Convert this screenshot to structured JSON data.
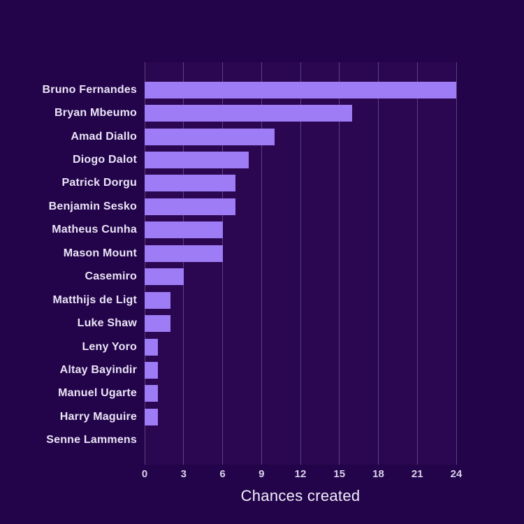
{
  "colors": {
    "figure_bg": "#23044a",
    "plot_bg": "#2a0750",
    "bar": "#9e7cf6",
    "gridline": "rgba(214,204,236,0.30)",
    "player_label_text": "#eae4f6",
    "tick_text": "#d9d1ea",
    "axis_label_text": "#f2eefb"
  },
  "chart_data": {
    "type": "bar",
    "orientation": "horizontal",
    "title": "",
    "xlabel": "Chances created",
    "ylabel": "",
    "categories": [
      "Bruno Fernandes",
      "Bryan Mbeumo",
      "Amad Diallo",
      "Diogo Dalot",
      "Patrick Dorgu",
      "Benjamin Sesko",
      "Matheus Cunha",
      "Mason Mount",
      "Casemiro",
      "Matthijs de Ligt",
      "Luke Shaw",
      "Leny Yoro",
      "Altay Bayindir",
      "Manuel Ugarte",
      "Harry Maguire",
      "Senne Lammens"
    ],
    "values": [
      24,
      16,
      10,
      8,
      7,
      7,
      6,
      6,
      3,
      2,
      2,
      1,
      1,
      1,
      1,
      0
    ],
    "xticks": [
      0,
      3,
      6,
      9,
      12,
      15,
      18,
      21,
      24
    ],
    "xlim": [
      0,
      24
    ],
    "grid": "vertical",
    "legend": "none"
  }
}
